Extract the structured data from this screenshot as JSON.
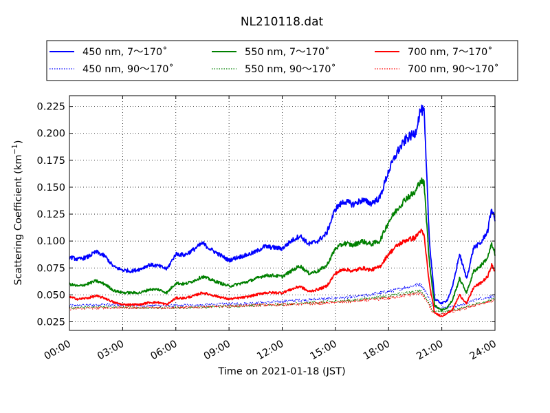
{
  "chart_data": {
    "type": "line",
    "title": "NL210118.dat",
    "xlabel": "Time on 2021-01-18 (JST)",
    "ylabel_main": "Scattering Coefficient (km",
    "ylabel_sup": "−1",
    "ylabel_close": ")",
    "xlim": [
      0,
      24
    ],
    "ylim": [
      0.017,
      0.235
    ],
    "x_ticks": [
      0,
      3,
      6,
      9,
      12,
      15,
      18,
      21,
      24
    ],
    "x_tick_labels": [
      "00:00",
      "03:00",
      "06:00",
      "09:00",
      "12:00",
      "15:00",
      "18:00",
      "21:00",
      "24:00"
    ],
    "y_ticks": [
      0.025,
      0.05,
      0.075,
      0.1,
      0.125,
      0.15,
      0.175,
      0.2,
      0.225
    ],
    "y_tick_labels": [
      "0.025",
      "0.050",
      "0.075",
      "0.100",
      "0.125",
      "0.150",
      "0.175",
      "0.200",
      "0.225"
    ],
    "grid": true,
    "legend_position": "top, outside plot",
    "series": [
      {
        "name": "450 nm, 7～170˚",
        "color": "#0000ff",
        "style": "solid",
        "x": [
          0,
          0.5,
          1,
          1.5,
          2,
          2.5,
          3,
          3.5,
          4,
          4.5,
          5,
          5.5,
          6,
          6.5,
          7,
          7.5,
          8,
          8.5,
          9,
          9.5,
          10,
          10.5,
          11,
          11.5,
          12,
          12.5,
          13,
          13.5,
          14,
          14.5,
          15,
          15.5,
          16,
          16.5,
          17,
          17.5,
          18,
          18.5,
          19,
          19.5,
          19.8,
          20,
          20.3,
          20.6,
          21,
          21.3,
          21.6,
          22,
          22.4,
          22.8,
          23.2,
          23.6,
          23.8,
          24
        ],
        "values": [
          0.085,
          0.083,
          0.085,
          0.09,
          0.086,
          0.076,
          0.073,
          0.072,
          0.074,
          0.078,
          0.077,
          0.074,
          0.088,
          0.087,
          0.092,
          0.098,
          0.092,
          0.087,
          0.082,
          0.085,
          0.087,
          0.09,
          0.095,
          0.094,
          0.093,
          0.1,
          0.105,
          0.097,
          0.1,
          0.107,
          0.13,
          0.137,
          0.134,
          0.138,
          0.135,
          0.14,
          0.165,
          0.183,
          0.195,
          0.2,
          0.222,
          0.22,
          0.1,
          0.046,
          0.042,
          0.045,
          0.057,
          0.088,
          0.065,
          0.094,
          0.098,
          0.11,
          0.13,
          0.12
        ]
      },
      {
        "name": "450 nm, 90～170˚",
        "color": "#0000ff",
        "style": "dotted",
        "x": [
          0,
          2,
          4,
          6,
          8,
          10,
          12,
          14,
          16,
          18,
          19.5,
          19.8,
          20.2,
          20.5,
          21,
          22,
          23,
          24
        ],
        "values": [
          0.04,
          0.041,
          0.04,
          0.04,
          0.041,
          0.042,
          0.044,
          0.046,
          0.048,
          0.053,
          0.059,
          0.06,
          0.05,
          0.039,
          0.038,
          0.04,
          0.046,
          0.049
        ]
      },
      {
        "name": "550 nm, 7～170˚",
        "color": "#008000",
        "style": "solid",
        "x": [
          0,
          0.5,
          1,
          1.5,
          2,
          2.5,
          3,
          3.5,
          4,
          4.5,
          5,
          5.5,
          6,
          6.5,
          7,
          7.5,
          8,
          8.5,
          9,
          9.5,
          10,
          10.5,
          11,
          11.5,
          12,
          12.5,
          13,
          13.5,
          14,
          14.5,
          15,
          15.5,
          16,
          16.5,
          17,
          17.5,
          18,
          18.5,
          19,
          19.5,
          19.8,
          20,
          20.3,
          20.6,
          21,
          21.3,
          21.6,
          22,
          22.4,
          22.8,
          23.2,
          23.6,
          23.8,
          24
        ],
        "values": [
          0.06,
          0.058,
          0.06,
          0.063,
          0.06,
          0.054,
          0.052,
          0.052,
          0.052,
          0.055,
          0.055,
          0.052,
          0.061,
          0.06,
          0.063,
          0.067,
          0.064,
          0.061,
          0.058,
          0.06,
          0.062,
          0.065,
          0.068,
          0.068,
          0.067,
          0.072,
          0.077,
          0.07,
          0.072,
          0.077,
          0.093,
          0.098,
          0.096,
          0.1,
          0.097,
          0.1,
          0.118,
          0.13,
          0.14,
          0.145,
          0.157,
          0.153,
          0.08,
          0.04,
          0.036,
          0.038,
          0.045,
          0.065,
          0.052,
          0.072,
          0.077,
          0.085,
          0.097,
          0.088
        ]
      },
      {
        "name": "550 nm, 90～170˚",
        "color": "#008000",
        "style": "dotted",
        "x": [
          0,
          2,
          4,
          6,
          8,
          10,
          12,
          14,
          16,
          18,
          19.5,
          19.8,
          20.2,
          20.5,
          21,
          22,
          23,
          24
        ],
        "values": [
          0.038,
          0.039,
          0.038,
          0.038,
          0.039,
          0.04,
          0.041,
          0.043,
          0.045,
          0.049,
          0.053,
          0.054,
          0.045,
          0.035,
          0.034,
          0.037,
          0.042,
          0.046
        ]
      },
      {
        "name": "700 nm, 7～170˚",
        "color": "#ff0000",
        "style": "solid",
        "x": [
          0,
          0.5,
          1,
          1.5,
          2,
          2.5,
          3,
          3.5,
          4,
          4.5,
          5,
          5.5,
          6,
          6.5,
          7,
          7.5,
          8,
          8.5,
          9,
          9.5,
          10,
          10.5,
          11,
          11.5,
          12,
          12.5,
          13,
          13.5,
          14,
          14.5,
          15,
          15.5,
          16,
          16.5,
          17,
          17.5,
          18,
          18.5,
          19,
          19.5,
          19.8,
          20,
          20.3,
          20.6,
          21,
          21.3,
          21.6,
          22,
          22.4,
          22.8,
          23.2,
          23.6,
          23.8,
          24
        ],
        "values": [
          0.048,
          0.046,
          0.047,
          0.049,
          0.047,
          0.043,
          0.041,
          0.041,
          0.041,
          0.043,
          0.043,
          0.041,
          0.047,
          0.047,
          0.049,
          0.052,
          0.05,
          0.048,
          0.046,
          0.047,
          0.048,
          0.05,
          0.052,
          0.052,
          0.052,
          0.055,
          0.058,
          0.053,
          0.055,
          0.058,
          0.07,
          0.074,
          0.072,
          0.075,
          0.073,
          0.076,
          0.088,
          0.096,
          0.101,
          0.103,
          0.11,
          0.105,
          0.06,
          0.033,
          0.03,
          0.033,
          0.036,
          0.05,
          0.042,
          0.057,
          0.061,
          0.067,
          0.078,
          0.072
        ]
      },
      {
        "name": "700 nm, 90～170˚",
        "color": "#ff0000",
        "style": "dotted",
        "x": [
          0,
          2,
          4,
          6,
          8,
          10,
          12,
          14,
          16,
          18,
          19.5,
          19.8,
          20.2,
          20.5,
          21,
          22,
          23,
          24
        ],
        "values": [
          0.037,
          0.038,
          0.038,
          0.038,
          0.039,
          0.04,
          0.041,
          0.042,
          0.044,
          0.047,
          0.051,
          0.052,
          0.043,
          0.033,
          0.032,
          0.036,
          0.041,
          0.045
        ]
      }
    ]
  }
}
